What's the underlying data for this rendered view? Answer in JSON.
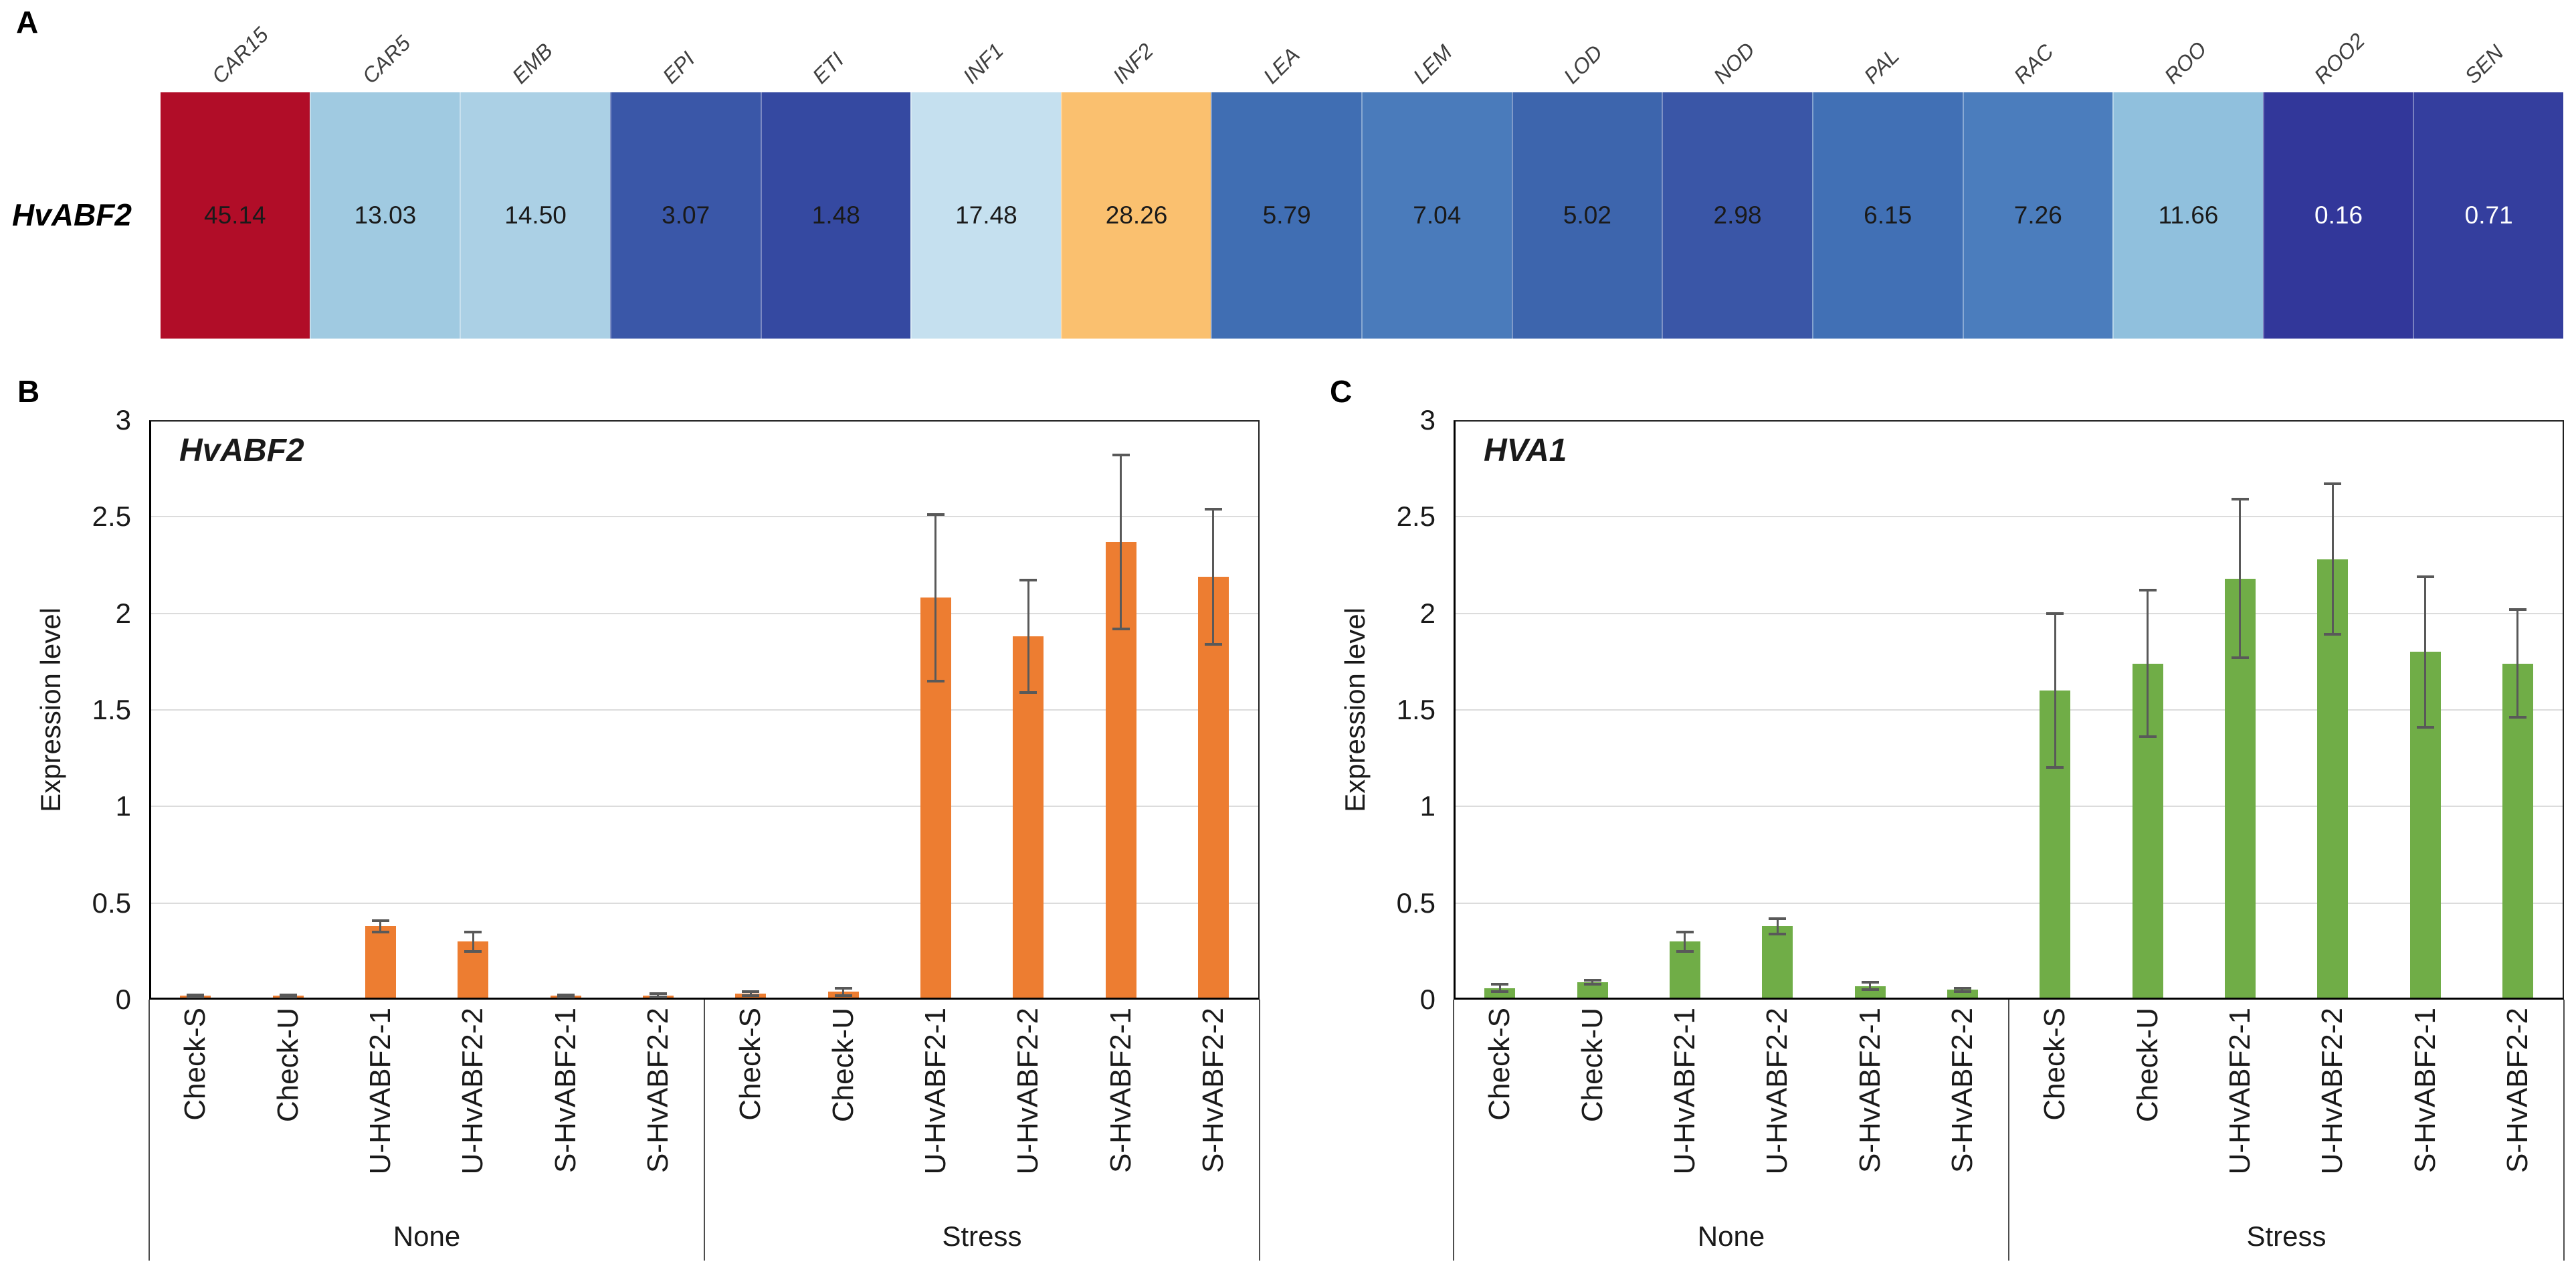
{
  "panels": {
    "a": "A",
    "b": "B",
    "c": "C"
  },
  "heatmap": {
    "row_label": "HvABF2",
    "columns": [
      "CAR15",
      "CAR5",
      "EMB",
      "EPI",
      "ETI",
      "INF1",
      "INF2",
      "LEA",
      "LEM",
      "LOD",
      "NOD",
      "PAL",
      "RAC",
      "ROO",
      "ROO2",
      "SEN"
    ],
    "values": [
      "45.14",
      "13.03",
      "14.50",
      "3.07",
      "1.48",
      "17.48",
      "28.26",
      "5.79",
      "7.04",
      "5.02",
      "2.98",
      "6.15",
      "7.26",
      "11.66",
      "0.16",
      "0.71"
    ],
    "cell_colors": [
      "#B10D28",
      "#A0CAE1",
      "#ABD0E5",
      "#3A57A8",
      "#3549A1",
      "#C5E0EF",
      "#FAC06F",
      "#406EB3",
      "#4A7BBB",
      "#3D65AD",
      "#3A56A7",
      "#4170B5",
      "#4B7DBD",
      "#90C0DD",
      "#32379A",
      "#343E9E"
    ],
    "value_text_colors": [
      "#1a1a1a",
      "#1a1a1a",
      "#1a1a1a",
      "#1a1a1a",
      "#1a1a1a",
      "#1a1a1a",
      "#1a1a1a",
      "#1a1a1a",
      "#1a1a1a",
      "#1a1a1a",
      "#1a1a1a",
      "#1a1a1a",
      "#1a1a1a",
      "#1a1a1a",
      "#ffffff",
      "#ffffff"
    ]
  },
  "chart_data": [
    {
      "type": "bar",
      "panel": "B",
      "title": "HvABF2",
      "ylabel": "Expression level",
      "xlabel": "",
      "ylim": [
        0,
        3
      ],
      "yticks": [
        "0",
        "0.5",
        "1",
        "1.5",
        "2",
        "2.5",
        "3"
      ],
      "grid": true,
      "legend": null,
      "bar_color": "#ED7D31",
      "error_color": "#595959",
      "grid_color": "#dcdcdc",
      "groups": [
        {
          "label": "None",
          "count": 6
        },
        {
          "label": "Stress",
          "count": 6
        }
      ],
      "categories": [
        "Check-S",
        "Check-U",
        "U-HvABF2-1",
        "U-HvABF2-2",
        "S-HvABF2-1",
        "S-HvABF2-2",
        "Check-S",
        "Check-U",
        "U-HvABF2-1",
        "U-HvABF2-2",
        "S-HvABF2-1",
        "S-HvABF2-2"
      ],
      "values": [
        0.01,
        0.01,
        0.37,
        0.29,
        0.01,
        0.01,
        0.02,
        0.03,
        2.07,
        1.87,
        2.36,
        2.18
      ],
      "errors": [
        0.005,
        0.005,
        0.03,
        0.05,
        0.005,
        0.01,
        0.01,
        0.02,
        0.43,
        0.29,
        0.45,
        0.35
      ]
    },
    {
      "type": "bar",
      "panel": "C",
      "title": "HVA1",
      "ylabel": "Expression level",
      "xlabel": "",
      "ylim": [
        0,
        3
      ],
      "yticks": [
        "0",
        "0.5",
        "1",
        "1.5",
        "2",
        "2.5",
        "3"
      ],
      "grid": true,
      "legend": null,
      "bar_color": "#70AD47",
      "error_color": "#595959",
      "grid_color": "#dcdcdc",
      "groups": [
        {
          "label": "None",
          "count": 6
        },
        {
          "label": "Stress",
          "count": 6
        }
      ],
      "categories": [
        "Check-S",
        "Check-U",
        "U-HvABF2-1",
        "U-HvABF2-2",
        "S-HvABF2-1",
        "S-HvABF2-2",
        "Check-S",
        "Check-U",
        "U-HvABF2-1",
        "U-HvABF2-2",
        "S-HvABF2-1",
        "S-HvABF2-2"
      ],
      "values": [
        0.05,
        0.08,
        0.29,
        0.37,
        0.06,
        0.04,
        1.59,
        1.73,
        2.17,
        2.27,
        1.79,
        1.73
      ],
      "errors": [
        0.02,
        0.01,
        0.05,
        0.04,
        0.02,
        0.01,
        0.4,
        0.38,
        0.41,
        0.39,
        0.39,
        0.28
      ]
    }
  ]
}
